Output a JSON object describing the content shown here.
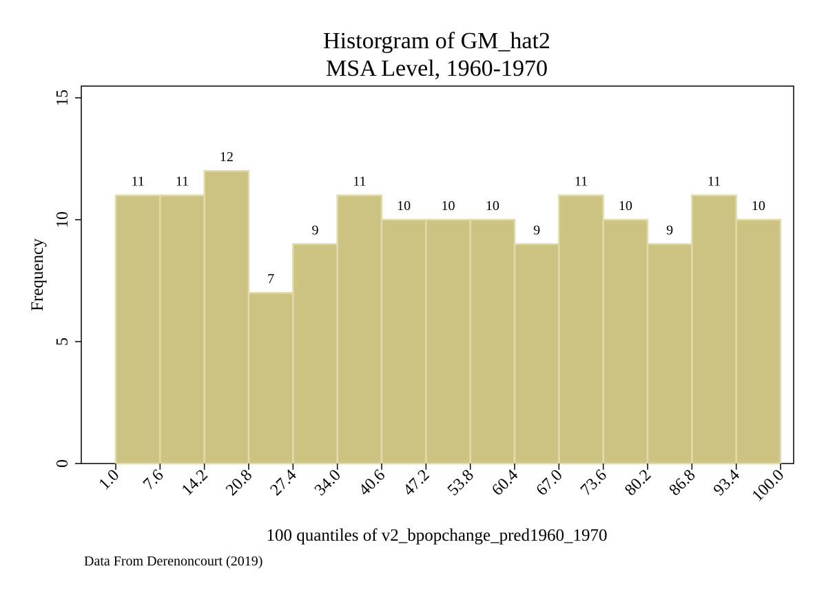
{
  "chart_data": {
    "type": "bar",
    "title": "Historgram of GM_hat2",
    "subtitle": "MSA Level, 1960-1970",
    "xlabel": "100 quantiles of v2_bpopchange_pred1960_1970",
    "ylabel": "Frequency",
    "note": "Data From Derenoncourt (2019)",
    "xlim": [
      1.0,
      100.0
    ],
    "ylim": [
      0,
      15
    ],
    "x_ticks": [
      "1.0",
      "7.6",
      "14.2",
      "20.8",
      "27.4",
      "34.0",
      "40.6",
      "47.2",
      "53.8",
      "60.4",
      "67.0",
      "73.6",
      "80.2",
      "86.8",
      "93.4",
      "100.0"
    ],
    "y_ticks": [
      "0",
      "5",
      "10",
      "15"
    ],
    "bins": [
      {
        "start": 1.0,
        "end": 7.6
      },
      {
        "start": 7.6,
        "end": 14.2
      },
      {
        "start": 14.2,
        "end": 20.8
      },
      {
        "start": 20.8,
        "end": 27.4
      },
      {
        "start": 27.4,
        "end": 34.0
      },
      {
        "start": 34.0,
        "end": 40.6
      },
      {
        "start": 40.6,
        "end": 47.2
      },
      {
        "start": 47.2,
        "end": 53.8
      },
      {
        "start": 53.8,
        "end": 60.4
      },
      {
        "start": 60.4,
        "end": 67.0
      },
      {
        "start": 67.0,
        "end": 73.6
      },
      {
        "start": 73.6,
        "end": 80.2
      },
      {
        "start": 80.2,
        "end": 86.8
      },
      {
        "start": 86.8,
        "end": 93.4
      },
      {
        "start": 93.4,
        "end": 100.0
      }
    ],
    "values": [
      11,
      11,
      12,
      7,
      9,
      11,
      10,
      10,
      10,
      9,
      11,
      10,
      9,
      11,
      10
    ],
    "bar_color": "#ccc383",
    "bar_edge_color": "#e1dbab",
    "grid": false,
    "legend": "none"
  }
}
